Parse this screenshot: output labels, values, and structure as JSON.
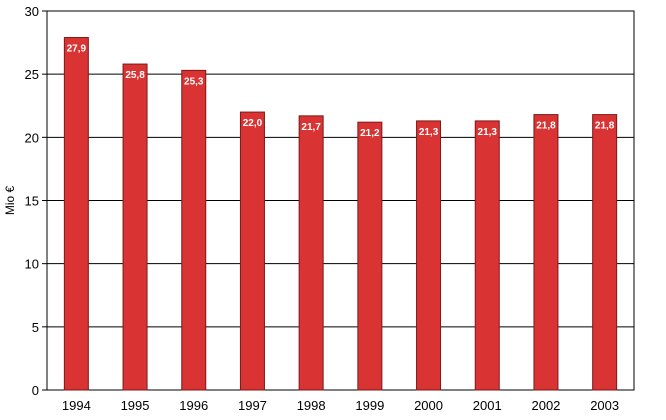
{
  "chart_data": {
    "type": "bar",
    "title": "",
    "xlabel": "",
    "ylabel": "Mio €",
    "ylim": [
      0,
      30
    ],
    "yticks": [
      0,
      5,
      10,
      15,
      20,
      25,
      30
    ],
    "grid": true,
    "categories": [
      "1994",
      "1995",
      "1996",
      "1997",
      "1998",
      "1999",
      "2000",
      "2001",
      "2002",
      "2003"
    ],
    "values": [
      27.9,
      25.8,
      25.3,
      22.0,
      21.7,
      21.2,
      21.3,
      21.3,
      21.8,
      21.8
    ],
    "data_labels": [
      "27,9",
      "25,8",
      "25,3",
      "22,0",
      "21,7",
      "21,2",
      "21,3",
      "21,3",
      "21,8",
      "21,8"
    ],
    "bar_color": "#d93333",
    "bar_edge_color": "#7a1a1a"
  }
}
